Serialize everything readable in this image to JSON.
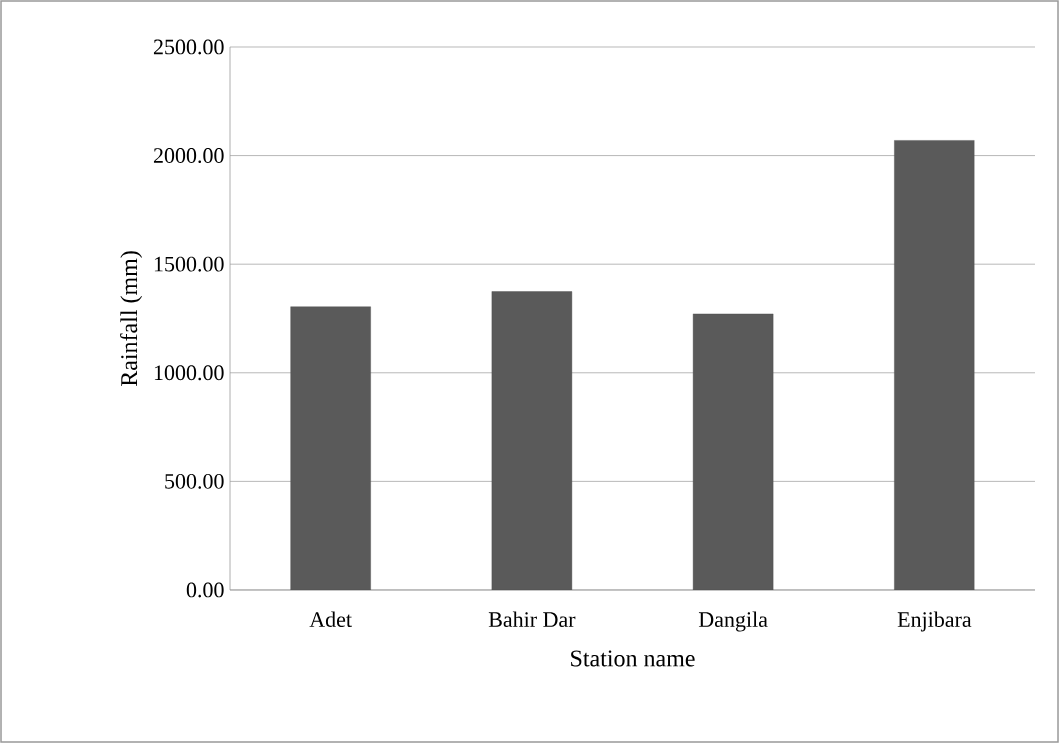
{
  "chart_data": {
    "type": "bar",
    "xlabel": "Station name",
    "ylabel": "Rainfall (mm)",
    "categories": [
      "Adet",
      "Bahir Dar",
      "Dangila",
      "Enjibara"
    ],
    "values": [
      1304,
      1374,
      1271,
      2070
    ],
    "color": "#5a5a5a",
    "ylim": [
      0,
      2500
    ],
    "yticks": [
      {
        "value": 0,
        "label": "0.00"
      },
      {
        "value": 500,
        "label": "500.00"
      },
      {
        "value": 1000,
        "label": "1000.00"
      },
      {
        "value": 1500,
        "label": "1500.00"
      },
      {
        "value": 2000,
        "label": "2000.00"
      },
      {
        "value": 2500,
        "label": "2500.00"
      }
    ],
    "grid": "y"
  }
}
